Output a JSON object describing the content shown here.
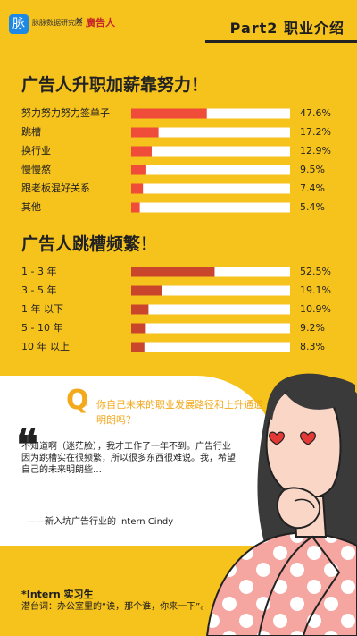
{
  "header": {
    "logo_icon": "脉",
    "logo_text": "脉脉数据研究院",
    "logo_x": "×",
    "logo_partner": "廣告人",
    "part_title": "Part2   职业介绍"
  },
  "colors": {
    "background": "#f6c21c",
    "bar_fill_1": "#ef4c39",
    "bar_fill_2": "#c9452b",
    "bar_track": "#ffffff"
  },
  "chart_data": [
    {
      "type": "bar",
      "title": "广告人升职加薪靠努力！",
      "categories": [
        "努力努力努力签单子",
        "跳槽",
        "换行业",
        "慢慢熬",
        "跟老板混好关系",
        "其他"
      ],
      "values": [
        47.6,
        17.2,
        12.9,
        9.5,
        7.4,
        5.4
      ],
      "value_labels": [
        "47.6%",
        "17.2%",
        "12.9%",
        "9.5%",
        "7.4%",
        "5.4%"
      ],
      "xlim": [
        0,
        100
      ]
    },
    {
      "type": "bar",
      "title": "广告人跳槽频繁！",
      "categories": [
        "1 - 3 年",
        "3 - 5 年",
        "1 年 以下",
        "5 - 10 年",
        "10 年 以上"
      ],
      "values": [
        52.5,
        19.1,
        10.9,
        9.2,
        8.3
      ],
      "value_labels": [
        "52.5%",
        "19.1%",
        "10.9%",
        "9.2%",
        "8.3%"
      ],
      "xlim": [
        0,
        100
      ]
    }
  ],
  "qa": {
    "q_letter": "Q",
    "q_colon": ":",
    "question": "你自己未来的职业发展路径和上升通道明朗吗？",
    "quote_mark": "❝",
    "answer": "不知道啊（迷茫脸），我才工作了一年不到。广告行业因为跳槽实在很频繁，所以很多东西很难说。我，希望自己的未来明朗些…",
    "signature": "——新入坑广告行业的 intern  Cindy"
  },
  "footnote": {
    "title": "*Intern  实习生",
    "desc": "潜台词：办公室里的“诶，那个谁，你来一下”。"
  }
}
